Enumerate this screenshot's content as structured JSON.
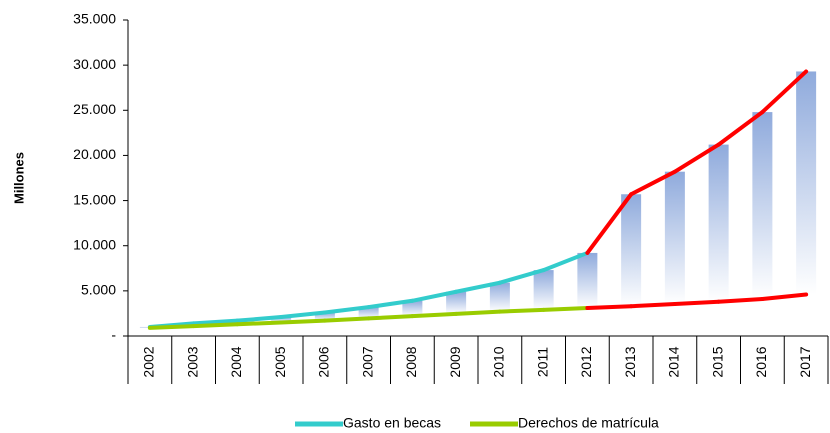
{
  "chart_data": {
    "type": "line",
    "ylabel": "Millones",
    "categories": [
      "2002",
      "2003",
      "2004",
      "2005",
      "2006",
      "2007",
      "2008",
      "2009",
      "2010",
      "2011",
      "2012",
      "2013",
      "2014",
      "2015",
      "2016",
      "2017"
    ],
    "series": [
      {
        "name": "Gasto en becas",
        "color": "#33cccc",
        "point_colors": [
          "#33cccc",
          "#33cccc",
          "#33cccc",
          "#33cccc",
          "#33cccc",
          "#33cccc",
          "#33cccc",
          "#33cccc",
          "#33cccc",
          "#33cccc",
          "#33cccc",
          "#ff0000",
          "#ff0000",
          "#ff0000",
          "#ff0000",
          "#ff0000"
        ],
        "values": [
          1000,
          1400,
          1700,
          2100,
          2600,
          3200,
          3900,
          4900,
          5900,
          7300,
          9200,
          15700,
          18200,
          21200,
          24800,
          29300
        ]
      },
      {
        "name": "Derechos de matrícula",
        "color": "#99cc00",
        "point_colors": [
          "#99cc00",
          "#99cc00",
          "#99cc00",
          "#99cc00",
          "#99cc00",
          "#99cc00",
          "#99cc00",
          "#99cc00",
          "#99cc00",
          "#99cc00",
          "#99cc00",
          "#ff0000",
          "#ff0000",
          "#ff0000",
          "#ff0000",
          "#ff0000"
        ],
        "values": [
          900,
          1100,
          1300,
          1500,
          1700,
          1950,
          2200,
          2450,
          2700,
          2900,
          3100,
          3300,
          3550,
          3800,
          4100,
          4600
        ]
      }
    ],
    "bar_color": "#8faadc",
    "ylim": [
      0,
      35000
    ],
    "yticks": [
      {
        "value": 0,
        "label": "-"
      },
      {
        "value": 5000,
        "label": "5.000"
      },
      {
        "value": 10000,
        "label": "10.000"
      },
      {
        "value": 15000,
        "label": "15.000"
      },
      {
        "value": 20000,
        "label": "20.000"
      },
      {
        "value": 25000,
        "label": "25.000"
      },
      {
        "value": 30000,
        "label": "30.000"
      },
      {
        "value": 35000,
        "label": "35.000"
      }
    ],
    "grid": false
  }
}
